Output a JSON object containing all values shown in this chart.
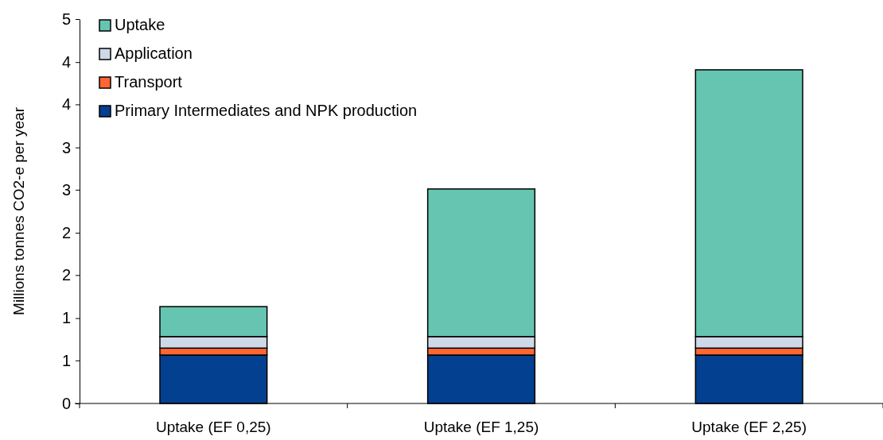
{
  "chart_data": {
    "type": "bar",
    "stacked": true,
    "ylabel": "Millions tonnes CO2-e per year",
    "categories": [
      "Uptake (EF 0,25)",
      "Uptake (EF 1,25)",
      "Uptake (EF 2,25)"
    ],
    "series": [
      {
        "name": "Primary Intermediates and NPK production",
        "color": "#03408f",
        "values": [
          0.63,
          0.63,
          0.63
        ]
      },
      {
        "name": "Transport",
        "color": "#ff6633",
        "values": [
          0.09,
          0.09,
          0.09
        ]
      },
      {
        "name": "Application",
        "color": "#cdd8e8",
        "values": [
          0.15,
          0.15,
          0.15
        ]
      },
      {
        "name": "Uptake",
        "color": "#66c5b0",
        "values": [
          0.39,
          1.92,
          3.47
        ]
      }
    ],
    "ylim": [
      0,
      5
    ],
    "yticks": [
      0,
      {
        "value": 0.56,
        "label": "1"
      },
      {
        "value": 1.11,
        "label": "1"
      },
      {
        "value": 1.67,
        "label": "2"
      },
      {
        "value": 2.22,
        "label": "2"
      },
      {
        "value": 2.78,
        "label": "3"
      },
      {
        "value": 3.33,
        "label": "3"
      },
      {
        "value": 3.89,
        "label": "4"
      },
      {
        "value": 4.44,
        "label": "4"
      },
      5
    ],
    "legend": "top left",
    "grid": false
  }
}
